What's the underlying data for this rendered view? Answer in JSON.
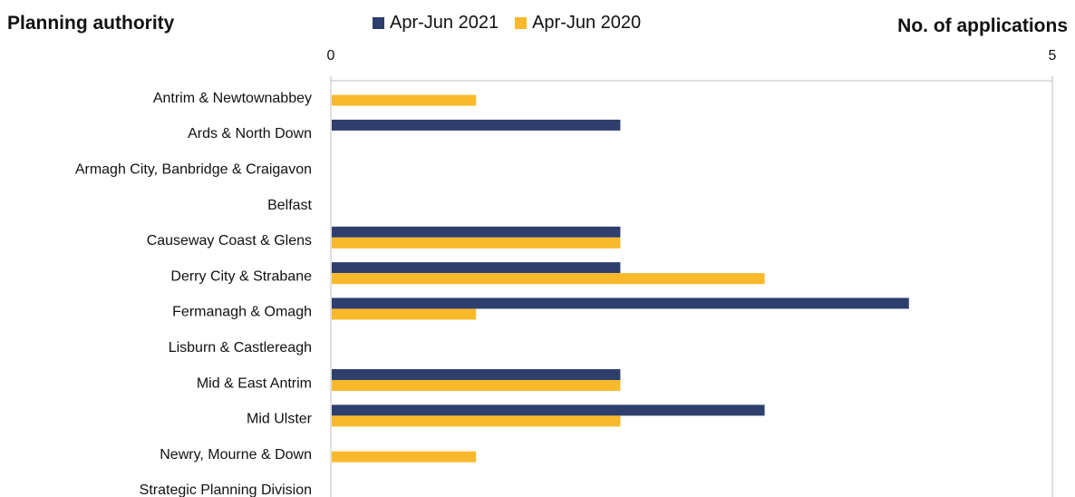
{
  "chart_data": {
    "type": "bar",
    "orientation": "horizontal",
    "title": "",
    "ylabel": "Planning authority",
    "xlabel": "No. of applications",
    "xlim": [
      0,
      5
    ],
    "xticks": [
      0,
      5
    ],
    "grid": false,
    "legend_position": "top",
    "categories": [
      "Antrim & Newtownabbey",
      "Ards & North Down",
      "Armagh City, Banbridge & Craigavon",
      "Belfast",
      "Causeway Coast & Glens",
      "Derry City & Strabane",
      "Fermanagh & Omagh",
      "Lisburn & Castlereagh",
      "Mid & East Antrim",
      "Mid Ulster",
      "Newry, Mourne & Down",
      "Strategic Planning Division"
    ],
    "series": [
      {
        "name": "Apr-Jun 2021",
        "color": "#2E3F6E",
        "values": [
          0,
          2,
          0,
          0,
          2,
          2,
          4,
          0,
          2,
          3,
          0,
          0
        ]
      },
      {
        "name": "Apr-Jun 2020",
        "color": "#F9B92B",
        "values": [
          1,
          0,
          0,
          0,
          2,
          3,
          1,
          0,
          2,
          2,
          1,
          0
        ]
      }
    ]
  }
}
